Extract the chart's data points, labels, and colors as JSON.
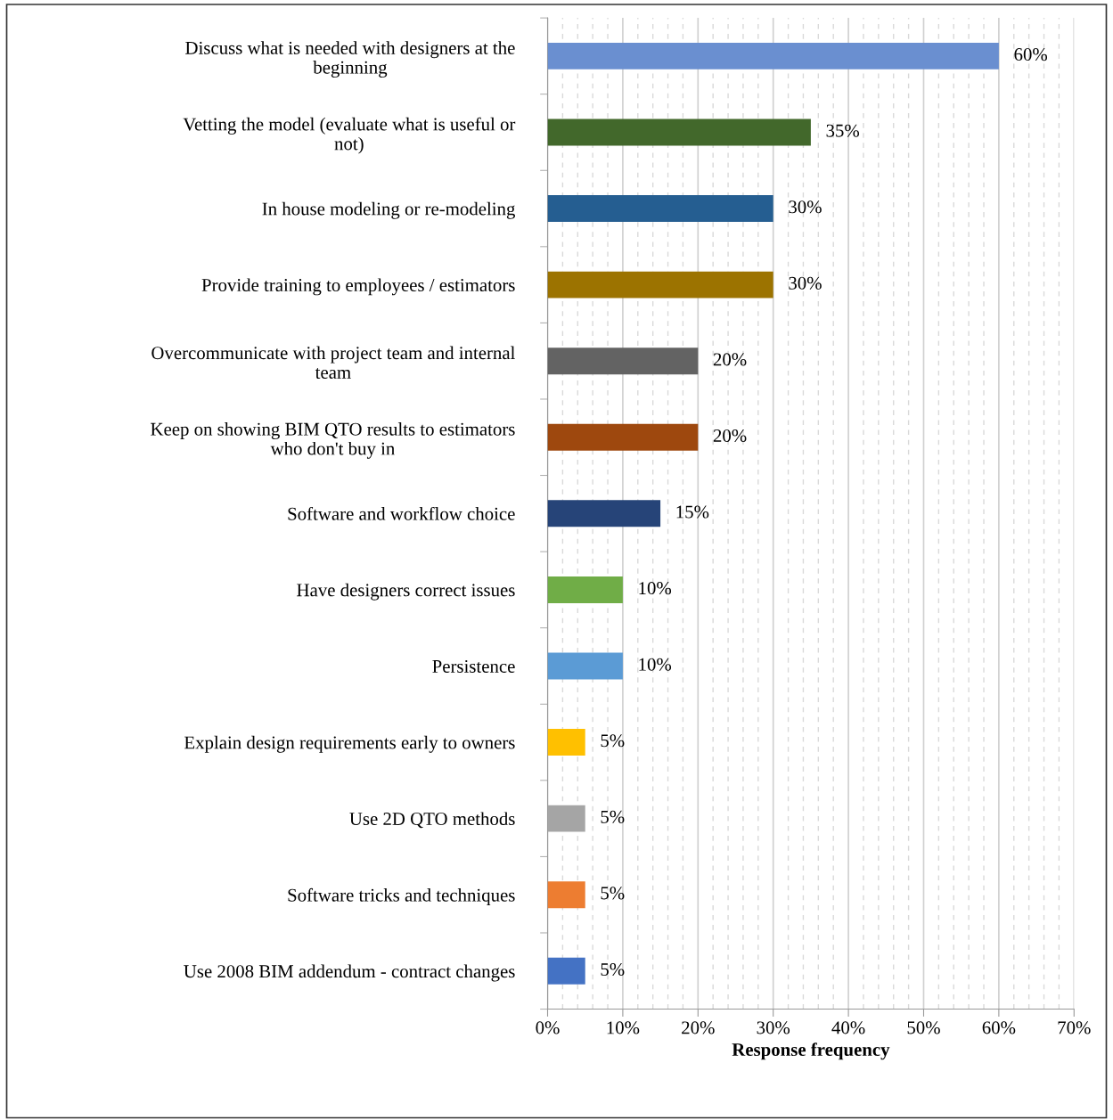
{
  "chart_data": {
    "type": "bar",
    "orientation": "horizontal",
    "xlabel": "Response frequency",
    "categories": [
      "Discuss what is needed with designers at the\nbeginning",
      "Vetting the model (evaluate what is useful or\nnot)",
      "In house modeling or re-modeling",
      "Provide training to employees / estimators",
      "Overcommunicate with project team and internal\nteam",
      "Keep on showing BIM QTO results to estimators\nwho don't buy in",
      "Software and workflow choice",
      "Have designers correct issues",
      "Persistence",
      "Explain design requirements early to owners",
      "Use 2D QTO methods",
      "Software tricks and techniques",
      "Use 2008 BIM addendum - contract changes"
    ],
    "values": [
      60,
      35,
      30,
      30,
      20,
      20,
      15,
      10,
      10,
      5,
      5,
      5,
      5
    ],
    "value_labels": [
      "60%",
      "35%",
      "30%",
      "30%",
      "20%",
      "20%",
      "15%",
      "10%",
      "10%",
      "5%",
      "5%",
      "5%",
      "5%"
    ],
    "colors": [
      "#6a8fd0",
      "#42682b",
      "#255e91",
      "#9c7300",
      "#636363",
      "#9e480e",
      "#264478",
      "#70ad47",
      "#5b9bd5",
      "#ffc000",
      "#a5a5a5",
      "#ed7d31",
      "#4472c4"
    ],
    "xlim": [
      0,
      70
    ],
    "xticks": [
      {
        "value": 0,
        "label": "0%"
      },
      {
        "value": 10,
        "label": "10%"
      },
      {
        "value": 20,
        "label": "20%"
      },
      {
        "value": 30,
        "label": "30%"
      },
      {
        "value": 40,
        "label": "40%"
      },
      {
        "value": 50,
        "label": "50%"
      },
      {
        "value": 60,
        "label": "60%"
      },
      {
        "value": 70,
        "label": "70%"
      }
    ],
    "grid": "x",
    "legend": false
  }
}
